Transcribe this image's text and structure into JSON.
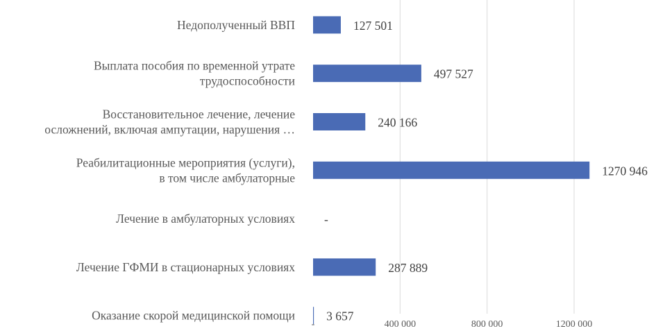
{
  "chart_data": {
    "type": "bar",
    "orientation": "horizontal",
    "title": "",
    "xlabel": "",
    "ylabel": "",
    "xlim": [
      0,
      1200000
    ],
    "grid": true,
    "legend": "none",
    "bar_color": "#4a6bb5",
    "categories": [
      [
        "Недополученный ВВП"
      ],
      [
        "Выплата пособия по временной утрате",
        "трудоспособности"
      ],
      [
        "Восстановительное лечение, лечение",
        "осложнений, включая ампутации, нарушения …"
      ],
      [
        "Реабилитационные мероприятия (услуги),",
        "в том числе амбулаторные"
      ],
      [
        "Лечение в амбулаторных условиях"
      ],
      [
        "Лечение ГФМИ в стационарных условиях"
      ],
      [
        "Оказание скорой медицинской помощи"
      ]
    ],
    "values": [
      127501,
      497527,
      240166,
      1270946,
      0,
      287889,
      3657
    ],
    "data_labels": [
      "127 501",
      "497 527",
      "240 166",
      "1270 946",
      "-",
      "287 889",
      "3 657"
    ],
    "x_ticks": [
      {
        "value": 0,
        "label": "-"
      },
      {
        "value": 400000,
        "label": "400 000"
      },
      {
        "value": 800000,
        "label": "800 000"
      },
      {
        "value": 1200000,
        "label": "1200 000"
      }
    ]
  }
}
